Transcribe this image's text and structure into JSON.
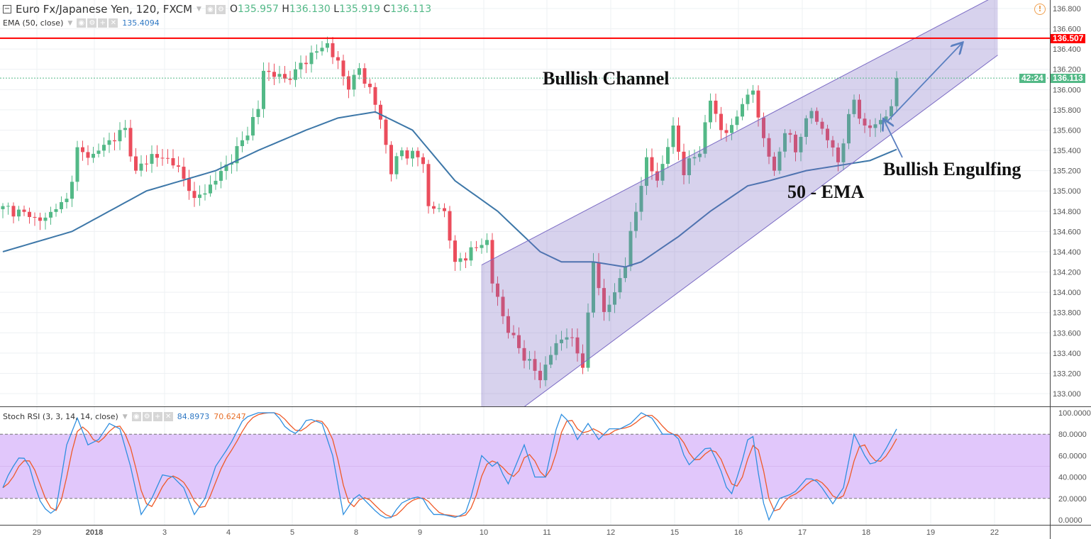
{
  "header": {
    "symbol": "Euro Fx/Japanese Yen, 120, FXCM",
    "open_label": "O",
    "open": "135.957",
    "high_label": "H",
    "high": "136.130",
    "low_label": "L",
    "low": "135.919",
    "close_label": "C",
    "close": "136.113"
  },
  "ema_legend": {
    "label": "EMA (50, close)",
    "value": "135.4094"
  },
  "stoch_legend": {
    "label": "Stoch RSI (3, 3, 14, 14, close)",
    "k": "84.8973",
    "d": "70.6247"
  },
  "annotations": {
    "channel": "Bullish Channel",
    "engulfing": "Bullish Engulfing",
    "ema": "50 - EMA"
  },
  "price_tags": {
    "resistance": "136.507",
    "last": "136.113",
    "countdown": "42:24"
  },
  "colors": {
    "up": "#53b987",
    "down": "#eb4d5c",
    "ema": "#3d77a8",
    "resistance": "#ff0000",
    "stoch_k": "#2f8fe0",
    "stoch_d": "#ef5a28",
    "channel": "#7b6bc4",
    "stoch_band": "#e1c7fb"
  },
  "chart_data": [
    {
      "type": "candlestick",
      "title": "Euro Fx/Japanese Yen, 120, FXCM",
      "ylim": [
        132.9,
        136.85
      ],
      "y_ticks": [
        "136.800",
        "136.600",
        "136.400",
        "136.200",
        "136.000",
        "135.800",
        "135.600",
        "135.400",
        "135.200",
        "135.000",
        "134.800",
        "134.600",
        "134.400",
        "134.200",
        "134.000",
        "133.800",
        "133.600",
        "133.400",
        "133.200",
        "133.000"
      ],
      "x_ticks": [
        "29",
        "2018",
        "3",
        "4",
        "5",
        "8",
        "9",
        "10",
        "11",
        "12",
        "15",
        "16",
        "17",
        "18",
        "19",
        "22"
      ],
      "close_keypoints": [
        [
          0,
          134.85
        ],
        [
          7,
          134.7
        ],
        [
          12,
          134.9
        ],
        [
          14,
          135.4
        ],
        [
          17,
          135.35
        ],
        [
          20,
          135.5
        ],
        [
          23,
          135.6
        ],
        [
          25,
          135.2
        ],
        [
          28,
          135.35
        ],
        [
          32,
          135.3
        ],
        [
          36,
          134.9
        ],
        [
          40,
          135.1
        ],
        [
          44,
          135.4
        ],
        [
          48,
          135.8
        ],
        [
          49,
          136.2
        ],
        [
          53,
          136.1
        ],
        [
          57,
          136.3
        ],
        [
          61,
          136.45
        ],
        [
          63,
          136.25
        ],
        [
          65,
          136.0
        ],
        [
          67,
          136.2
        ],
        [
          69,
          136.0
        ],
        [
          71,
          135.7
        ],
        [
          73,
          135.2
        ],
        [
          75,
          135.4
        ],
        [
          79,
          135.3
        ],
        [
          80,
          134.85
        ],
        [
          83,
          134.8
        ],
        [
          85,
          134.3
        ],
        [
          88,
          134.4
        ],
        [
          91,
          134.5
        ],
        [
          92,
          134.1
        ],
        [
          95,
          133.6
        ],
        [
          99,
          133.3
        ],
        [
          101,
          133.15
        ],
        [
          103,
          133.4
        ],
        [
          106,
          133.6
        ],
        [
          109,
          133.3
        ],
        [
          111,
          134.3
        ],
        [
          113,
          133.8
        ],
        [
          115,
          134.0
        ],
        [
          117,
          134.3
        ],
        [
          119,
          134.8
        ],
        [
          121,
          135.3
        ],
        [
          123,
          135.1
        ],
        [
          126,
          135.6
        ],
        [
          128,
          135.2
        ],
        [
          131,
          135.4
        ],
        [
          133,
          135.9
        ],
        [
          135,
          135.6
        ],
        [
          137,
          135.6
        ],
        [
          139,
          135.9
        ],
        [
          141,
          136.0
        ],
        [
          143,
          135.5
        ],
        [
          145,
          135.2
        ],
        [
          147,
          135.6
        ],
        [
          149,
          135.4
        ],
        [
          152,
          135.8
        ],
        [
          155,
          135.5
        ],
        [
          157,
          135.3
        ],
        [
          160,
          135.9
        ],
        [
          162,
          135.6
        ],
        [
          165,
          135.7
        ],
        [
          167,
          135.8
        ],
        [
          168,
          136.113
        ]
      ],
      "ema50_keypoints": [
        [
          0,
          134.4
        ],
        [
          13,
          134.6
        ],
        [
          27,
          135.0
        ],
        [
          40,
          135.2
        ],
        [
          48,
          135.4
        ],
        [
          57,
          135.6
        ],
        [
          63,
          135.72
        ],
        [
          70,
          135.78
        ],
        [
          77,
          135.6
        ],
        [
          85,
          135.1
        ],
        [
          93,
          134.8
        ],
        [
          101,
          134.4
        ],
        [
          105,
          134.3
        ],
        [
          111,
          134.3
        ],
        [
          117,
          134.25
        ],
        [
          120,
          134.3
        ],
        [
          127,
          134.55
        ],
        [
          133,
          134.8
        ],
        [
          140,
          135.05
        ],
        [
          144,
          135.1
        ],
        [
          151,
          135.2
        ],
        [
          157,
          135.25
        ],
        [
          163,
          135.3
        ],
        [
          168,
          135.41
        ]
      ],
      "resistance": 136.507,
      "channel": {
        "upper": [
          [
            90,
            134.27
          ],
          [
            185,
            136.88
          ]
        ],
        "lower": [
          [
            98,
            132.87
          ],
          [
            187,
            136.34
          ]
        ]
      }
    },
    {
      "type": "line",
      "title": "Stoch RSI (3, 3, 14, 14, close)",
      "ylim": [
        0,
        100
      ],
      "y_ticks": [
        "100.0000",
        "80.0000",
        "60.0000",
        "40.0000",
        "20.0000",
        "0.0000"
      ],
      "bands": [
        20,
        80
      ],
      "k_keypoints": [
        [
          0,
          30
        ],
        [
          1.3,
          45
        ],
        [
          3.3,
          60
        ],
        [
          4.7,
          55
        ],
        [
          6.7,
          20
        ],
        [
          8.7,
          5
        ],
        [
          10,
          10
        ],
        [
          12,
          70
        ],
        [
          14,
          95
        ],
        [
          16,
          70
        ],
        [
          18,
          75
        ],
        [
          20,
          90
        ],
        [
          22,
          85
        ],
        [
          24,
          50
        ],
        [
          26,
          5
        ],
        [
          28,
          20
        ],
        [
          30,
          42
        ],
        [
          32,
          40
        ],
        [
          34,
          30
        ],
        [
          36,
          5
        ],
        [
          38,
          20
        ],
        [
          40,
          50
        ],
        [
          42.7,
          70
        ],
        [
          45.3,
          95
        ],
        [
          48,
          100
        ],
        [
          51.3,
          100
        ],
        [
          53.3,
          85
        ],
        [
          55.3,
          80
        ],
        [
          57.3,
          95
        ],
        [
          60,
          90
        ],
        [
          62,
          60
        ],
        [
          64,
          5
        ],
        [
          66.7,
          25
        ],
        [
          68.7,
          15
        ],
        [
          70.7,
          5
        ],
        [
          72.7,
          0
        ],
        [
          74.7,
          15
        ],
        [
          76.7,
          20
        ],
        [
          78.7,
          22
        ],
        [
          80.7,
          5
        ],
        [
          82.7,
          5
        ],
        [
          85.3,
          2
        ],
        [
          87.3,
          8
        ],
        [
          90,
          60
        ],
        [
          92,
          50
        ],
        [
          93.3,
          55
        ],
        [
          94.7,
          30
        ],
        [
          98,
          70
        ],
        [
          100,
          40
        ],
        [
          102,
          40
        ],
        [
          104.7,
          100
        ],
        [
          106.7,
          90
        ],
        [
          108,
          75
        ],
        [
          110,
          90
        ],
        [
          112,
          75
        ],
        [
          114,
          85
        ],
        [
          116,
          85
        ],
        [
          118,
          90
        ],
        [
          120,
          100
        ],
        [
          122,
          95
        ],
        [
          124,
          80
        ],
        [
          126.7,
          80
        ],
        [
          128.7,
          50
        ],
        [
          130.7,
          60
        ],
        [
          132.7,
          70
        ],
        [
          134.7,
          50
        ],
        [
          136.7,
          20
        ],
        [
          138.7,
          50
        ],
        [
          140.7,
          88
        ],
        [
          142.7,
          20
        ],
        [
          144,
          0
        ],
        [
          146,
          20
        ],
        [
          148.7,
          25
        ],
        [
          151.3,
          40
        ],
        [
          153.3,
          35
        ],
        [
          156,
          15
        ],
        [
          158,
          30
        ],
        [
          160,
          80
        ],
        [
          162,
          60
        ],
        [
          163.3,
          50
        ],
        [
          165.3,
          60
        ],
        [
          168,
          84.9
        ]
      ]
    }
  ]
}
